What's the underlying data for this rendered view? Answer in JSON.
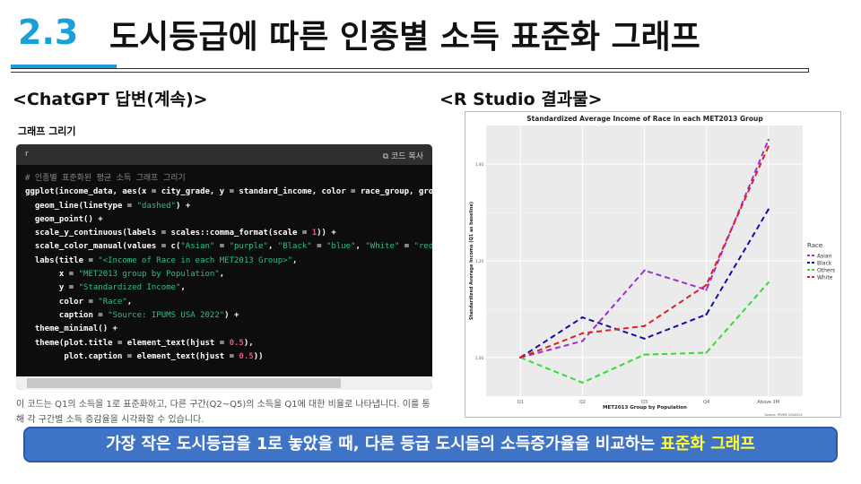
{
  "header": {
    "number": "2.3",
    "title": "도시등급에 따른 인종별 소득 표준화 그래프"
  },
  "left": {
    "heading": "<ChatGPT 답변(계속)>",
    "section_label": "그래프 그리기",
    "code_lang": "r",
    "copy_label": "코드 복사",
    "code_lines": [
      "# 인종별 표준화된 평균 소득 그래프 그리기",
      "ggplot(income_data, aes(x = city_grade, y = standard_income, color = race_group, group = r",
      "  geom_line(linetype = \"dashed\") +",
      "  geom_point() +",
      "  scale_y_continuous(labels = scales::comma_format(scale = 1)) +",
      "  scale_color_manual(values = c(\"Asian\" = \"purple\", \"Black\" = \"blue\", \"White\" = \"red\", \"Ot",
      "  labs(title = \"<Income of Race in each MET2013 Group>\",",
      "       x = \"MET2013 group by Population\",",
      "       y = \"Standardized Income\",",
      "       color = \"Race\",",
      "       caption = \"Source: IPUMS USA 2022\") +",
      "  theme_minimal() +",
      "  theme(plot.title = element_text(hjust = 0.5),",
      "        plot.caption = element_text(hjust = 0.5))"
    ],
    "description": "이 코드는 Q1의 소득을 1로 표준화하고, 다른 구간(Q2~Q5)의 소득을 Q1에 대한 비율로 나타냅니다. 이를 통해 각 구간별 소득 증감율을 시각화할 수 있습니다."
  },
  "right": {
    "heading": "<R Studio 결과물>"
  },
  "chart_data": {
    "type": "line",
    "title": "Standardized Average Income of Race in each MET2013 Group",
    "xlabel": "MET2013 Group by Population",
    "ylabel": "Standardized Average Income (Q1 as baseline)",
    "caption": "Source: IPUMS USA2022",
    "legend_title": "Race",
    "legend_placement": "right",
    "categories": [
      "Q1",
      "Q2",
      "Q3",
      "Q4",
      "Above 1M"
    ],
    "yticks": [
      1.0,
      1.2,
      1.4
    ],
    "ytick_labels": [
      "1.00",
      "1.20",
      "1.40"
    ],
    "ylim": [
      0.92,
      1.48
    ],
    "grid": true,
    "linestyle": "dashed",
    "series": [
      {
        "name": "Asian",
        "color": "#9b30d0",
        "values": [
          1.0,
          1.034,
          1.18,
          1.14,
          1.45
        ]
      },
      {
        "name": "Black",
        "color": "#1010a0",
        "values": [
          1.0,
          1.083,
          1.039,
          1.089,
          1.306
        ]
      },
      {
        "name": "Others",
        "color": "#33dd33",
        "values": [
          1.0,
          0.948,
          1.006,
          1.01,
          1.155
        ]
      },
      {
        "name": "White",
        "color": "#dd2222",
        "values": [
          1.0,
          1.05,
          1.065,
          1.15,
          1.436
        ]
      }
    ]
  },
  "banner": {
    "text": "가장 작은 도시등급을 1로 놓았을 때, 다른 등급 도시들의 소득증가율을 비교하는 ",
    "highlight": "표준화 그래프"
  }
}
